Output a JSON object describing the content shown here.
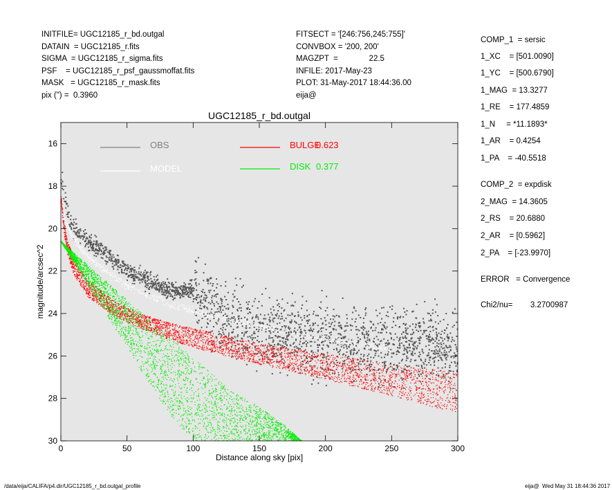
{
  "header": {
    "left": [
      "INITFILE= UGC12185_r_bd.outgal",
      "DATAIN  = UGC12185_r.fits",
      "SIGMA  = UGC12185_r_sigma.fits",
      "PSF    = UGC12185_r_psf_gaussmoffat.fits",
      "MASK   = UGC12185_r_mask.fits",
      "pix (\") =  0.3960"
    ],
    "middle": [
      "FITSECT = '[246:756,245:755]'",
      "CONVBOX = '200, 200'",
      "MAGZPT  =              22.5",
      "INFILE: 2017-May-23",
      "PLOT: 31-May-2017 18:44:36.00",
      "eija@"
    ]
  },
  "params": [
    "COMP_1  = sersic",
    "1_XC    = [501.0090]",
    "1_YC    = [500.6790]",
    "1_MAG  = 13.3277",
    "1_RE    = 177.4859",
    "1_N     = *11.1893*",
    "1_AR    = 0.4254",
    "1_PA    = -40.5518",
    "COMP_2  = expdisk",
    "2_MAG  = 14.3605",
    "2_RS    = 20.6880",
    "2_AR    = [0.5962]",
    "2_PA    = [-23.9970]",
    "ERROR   = Convergence",
    "Chi2/nu=        3.2700987"
  ],
  "footer": {
    "left": "/data/eija/CALIFA/p4.dir/UGC12185_r_bd.outgal_profile",
    "right": "eija@  Wed May 31 18:44:36 2017"
  },
  "chart_data": {
    "type": "scatter",
    "title": "UGC12185_r_bd.outgal",
    "xlabel": "Distance along sky [pix]",
    "ylabel": "magnitude/arcsec^2",
    "xlim": [
      0,
      300
    ],
    "ylim": [
      30,
      15
    ],
    "y_inverted": true,
    "xticks": [
      0,
      50,
      100,
      150,
      200,
      250,
      300
    ],
    "yticks": [
      16,
      18,
      20,
      22,
      24,
      26,
      28,
      30
    ],
    "background": "#e6e6e6",
    "legend": [
      {
        "label": "OBS",
        "color": "#808080",
        "value": ""
      },
      {
        "label": "MODEL",
        "color": "#ffffff",
        "value": ""
      },
      {
        "label": "BULGE",
        "color": "#ff0000",
        "value": "0.623"
      },
      {
        "label": "DISK",
        "color": "#00ee00",
        "value": "0.377"
      }
    ],
    "series": [
      {
        "name": "OBS",
        "color": "#555555",
        "x": [
          1,
          5,
          10,
          15,
          20,
          25,
          30,
          40,
          50,
          60,
          70,
          80,
          90,
          100,
          110,
          120,
          140,
          160,
          180,
          200,
          220,
          240,
          260,
          280,
          300
        ],
        "y": [
          17.8,
          19.3,
          20.0,
          20.3,
          20.5,
          20.8,
          21.0,
          21.5,
          22.0,
          22.3,
          22.6,
          22.9,
          23.0,
          22.8,
          23.6,
          24.2,
          24.6,
          24.9,
          25.1,
          25.2,
          25.3,
          25.4,
          25.5,
          25.5,
          25.6
        ]
      },
      {
        "name": "MODEL",
        "color": "#ffffff",
        "x": [
          0.5,
          2,
          5,
          10,
          20,
          40,
          60,
          80,
          100,
          150,
          200,
          250
        ],
        "y": [
          18.4,
          19.2,
          19.9,
          20.5,
          21.3,
          22.3,
          23.0,
          23.5,
          23.9,
          24.6,
          25.2,
          25.7
        ]
      },
      {
        "name": "BULGE",
        "color": "#ff0000",
        "x": [
          0.5,
          2,
          5,
          10,
          20,
          40,
          60,
          80,
          100,
          150,
          200,
          250,
          300
        ],
        "y_upper": [
          18.5,
          19.5,
          20.5,
          21.4,
          22.4,
          23.4,
          24.0,
          24.4,
          24.7,
          25.4,
          25.9,
          26.4,
          26.8
        ],
        "y_lower": [
          18.8,
          20.0,
          21.2,
          22.2,
          23.2,
          24.1,
          24.7,
          25.2,
          25.6,
          26.4,
          27.1,
          27.9,
          28.7
        ]
      },
      {
        "name": "DISK",
        "color": "#00ee00",
        "x": [
          0,
          20,
          40,
          60,
          80,
          100,
          110,
          130,
          150,
          170,
          182
        ],
        "y_upper": [
          20.6,
          21.7,
          22.8,
          23.9,
          25.0,
          26.1,
          26.6,
          27.7,
          28.4,
          29.3,
          30.0
        ],
        "y_lower": [
          20.6,
          22.6,
          24.6,
          26.6,
          28.6,
          30.0,
          30.0,
          30.0,
          30.0,
          30.0,
          30.0
        ]
      }
    ]
  }
}
